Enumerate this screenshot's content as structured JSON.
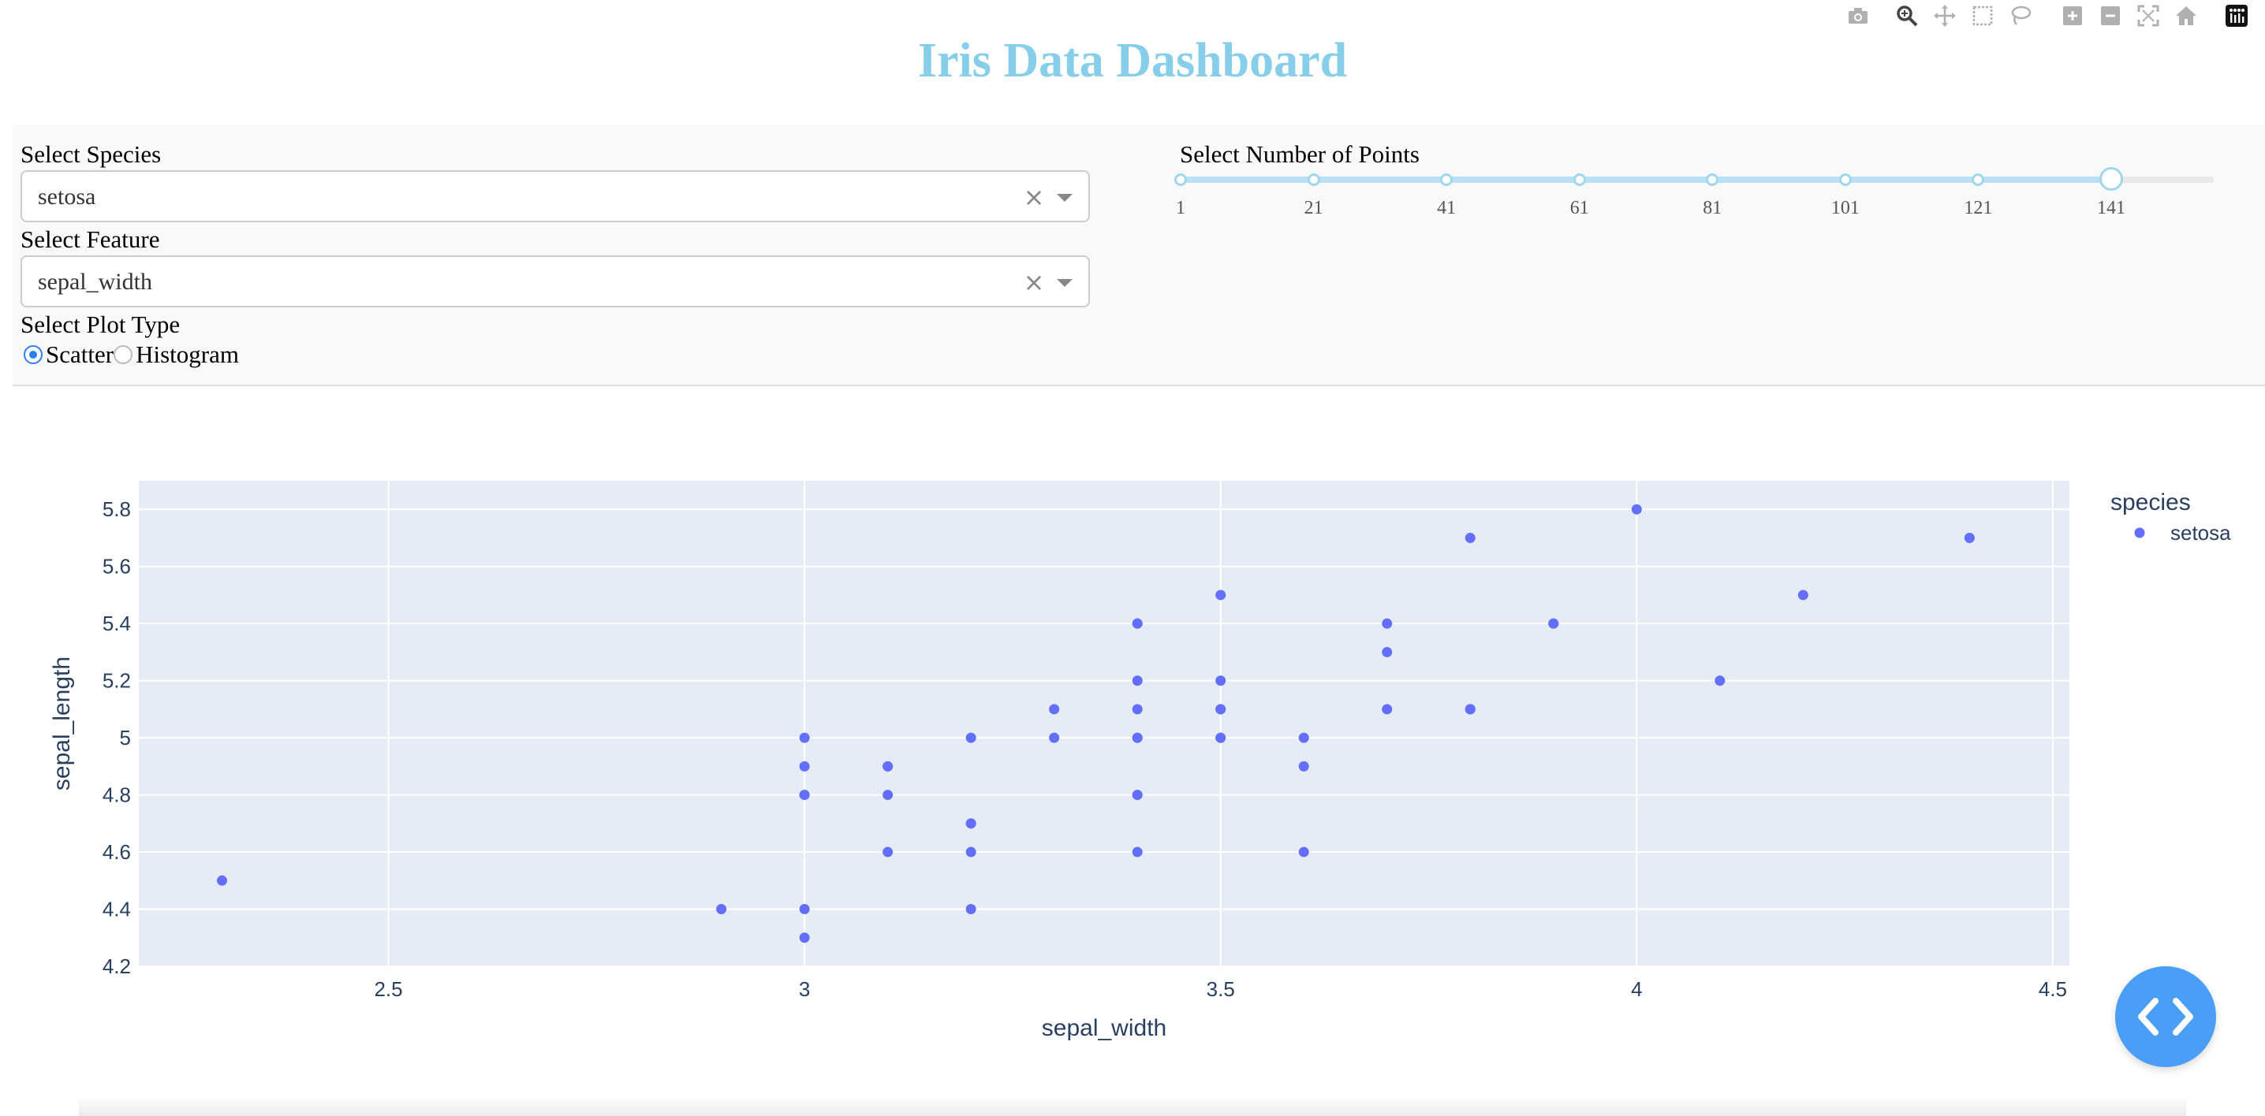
{
  "title": "Iris Data Dashboard",
  "controls": {
    "species_label": "Select Species",
    "species_value": "setosa",
    "feature_label": "Select Feature",
    "feature_value": "sepal_width",
    "plot_type_label": "Select Plot Type",
    "plot_type_options": [
      "Scatter",
      "Histogram"
    ],
    "plot_type_selected": "Scatter",
    "points_label": "Select Number of Points",
    "points_marks": [
      "1",
      "21",
      "41",
      "61",
      "81",
      "101",
      "121",
      "141"
    ],
    "points_min": 1,
    "points_max": 141,
    "points_value": 141,
    "clear_glyph": "×"
  },
  "modebar": {
    "icons": [
      "camera-icon",
      "zoom-icon",
      "pan-icon",
      "box-select-icon",
      "lasso-select-icon",
      "zoom-in-icon",
      "zoom-out-icon",
      "autoscale-icon",
      "reset-axes-icon",
      "plotly-logo-icon"
    ]
  },
  "colors": {
    "title": "#87ceeb",
    "marker": "#636efa",
    "plot_bg": "#e5ecf6",
    "slider": "#a0d6ee",
    "code_button": "#4a9ef7"
  },
  "chart_data": {
    "type": "scatter",
    "xlabel": "sepal_width",
    "ylabel": "sepal_length",
    "xlim": [
      2.2,
      4.52
    ],
    "ylim": [
      4.2,
      5.9
    ],
    "xticks": [
      2.5,
      3,
      3.5,
      4,
      4.5
    ],
    "xtick_labels": [
      "2.5",
      "3",
      "3.5",
      "4",
      "4.5"
    ],
    "yticks": [
      4.2,
      4.4,
      4.6,
      4.8,
      5.0,
      5.2,
      5.4,
      5.6,
      5.8
    ],
    "ytick_labels": [
      "4.2",
      "4.4",
      "4.6",
      "4.8",
      "5",
      "5.2",
      "5.4",
      "5.6",
      "5.8"
    ],
    "grid": true,
    "legend_title": "species",
    "legend_position": "right",
    "series": [
      {
        "name": "setosa",
        "points": [
          [
            3.5,
            5.1
          ],
          [
            3.0,
            4.9
          ],
          [
            3.2,
            4.7
          ],
          [
            3.1,
            4.6
          ],
          [
            3.6,
            5.0
          ],
          [
            3.9,
            5.4
          ],
          [
            3.4,
            4.6
          ],
          [
            3.4,
            5.0
          ],
          [
            2.9,
            4.4
          ],
          [
            3.1,
            4.9
          ],
          [
            3.7,
            5.4
          ],
          [
            3.4,
            4.8
          ],
          [
            3.0,
            4.8
          ],
          [
            3.0,
            4.3
          ],
          [
            4.0,
            5.8
          ],
          [
            4.4,
            5.7
          ],
          [
            3.9,
            5.4
          ],
          [
            3.5,
            5.1
          ],
          [
            3.8,
            5.7
          ],
          [
            3.8,
            5.1
          ],
          [
            3.4,
            5.4
          ],
          [
            3.7,
            5.1
          ],
          [
            3.6,
            4.6
          ],
          [
            3.3,
            5.1
          ],
          [
            3.4,
            4.8
          ],
          [
            3.0,
            5.0
          ],
          [
            3.4,
            5.0
          ],
          [
            3.5,
            5.2
          ],
          [
            3.4,
            5.2
          ],
          [
            3.2,
            4.7
          ],
          [
            3.1,
            4.8
          ],
          [
            3.4,
            5.4
          ],
          [
            4.1,
            5.2
          ],
          [
            4.2,
            5.5
          ],
          [
            3.1,
            4.9
          ],
          [
            3.2,
            5.0
          ],
          [
            3.5,
            5.5
          ],
          [
            3.6,
            4.9
          ],
          [
            3.0,
            4.4
          ],
          [
            3.4,
            5.1
          ],
          [
            3.5,
            5.0
          ],
          [
            2.3,
            4.5
          ],
          [
            3.2,
            4.4
          ],
          [
            3.5,
            5.0
          ],
          [
            3.8,
            5.1
          ],
          [
            3.0,
            4.8
          ],
          [
            3.8,
            5.1
          ],
          [
            3.2,
            4.6
          ],
          [
            3.7,
            5.3
          ],
          [
            3.3,
            5.0
          ]
        ]
      }
    ]
  }
}
